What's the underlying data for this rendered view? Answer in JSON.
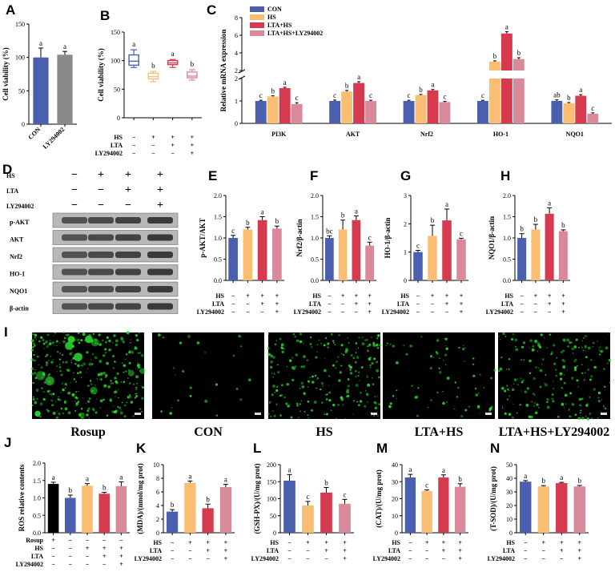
{
  "colors": {
    "CON": "#4a5fae",
    "HS": "#f9be72",
    "LTA_HS": "#d63a4e",
    "LTA_HS_LY": "#d8899a",
    "Rosup": "#000000",
    "LY294002": "#8a8a8a",
    "fluor": "#2bd42b"
  },
  "panels": {
    "A": "A",
    "B": "B",
    "C": "C",
    "D": "D",
    "E": "E",
    "F": "F",
    "G": "G",
    "H": "H",
    "I": "I",
    "J": "J",
    "K": "K",
    "L": "L",
    "M": "M",
    "N": "N"
  },
  "treatments": {
    "labels": [
      "HS",
      "LTA",
      "LY294002"
    ],
    "rows4": [
      [
        "−",
        "+",
        "+",
        "+"
      ],
      [
        "−",
        "−",
        "+",
        "+"
      ],
      [
        "−",
        "−",
        "−",
        "+"
      ]
    ],
    "rowsJ_label": "Rosup",
    "rowsJ": [
      [
        "+",
        "−",
        "−",
        "−",
        "−"
      ],
      [
        "−",
        "−",
        "+",
        "+",
        "+"
      ],
      [
        "−",
        "−",
        "−",
        "+",
        "+"
      ],
      [
        "−",
        "−",
        "−",
        "−",
        "+"
      ]
    ]
  },
  "western": {
    "header_labels": [
      "HS",
      "LTA",
      "LY294002"
    ],
    "header_rows": [
      [
        "−",
        "+",
        "+",
        "+"
      ],
      [
        "−",
        "−",
        "+",
        "+"
      ],
      [
        "−",
        "−",
        "−",
        "+"
      ]
    ],
    "bands": [
      "p-AKT",
      "AKT",
      "Nrf2",
      "HO-1",
      "NQO1",
      "β-actin"
    ]
  },
  "images": {
    "labels": [
      "Rosup",
      "CON",
      "HS",
      "LTA+HS",
      "LTA+HS+LY294002"
    ]
  },
  "chart_data": [
    {
      "id": "A",
      "type": "bar",
      "ylabel": "Cell viability (%)",
      "categories": [
        "CON",
        "LY294002"
      ],
      "values": [
        100,
        104
      ],
      "err": [
        14,
        5
      ],
      "letters": [
        "a",
        "a"
      ],
      "ylim": [
        0,
        150
      ],
      "yticks": [
        0,
        50,
        100,
        150
      ]
    },
    {
      "id": "B",
      "type": "box",
      "ylabel": "Cell viability (%)",
      "ylim": [
        0,
        150
      ],
      "yticks": [
        0,
        50,
        100,
        150
      ],
      "boxes": [
        {
          "min": 88,
          "q1": 92,
          "med": 99,
          "q3": 110,
          "max": 119,
          "letter": "a"
        },
        {
          "min": 63,
          "q1": 68,
          "med": 72,
          "q3": 78,
          "max": 81,
          "letter": "b"
        },
        {
          "min": 88,
          "q1": 93,
          "med": 96,
          "q3": 100,
          "max": 102,
          "letter": "a"
        },
        {
          "min": 66,
          "q1": 70,
          "med": 73,
          "q3": 80,
          "max": 84,
          "letter": "b"
        }
      ]
    },
    {
      "id": "C",
      "type": "bar",
      "ylabel": "Relative mRNA expression",
      "categories": [
        "PI3K",
        "AKT",
        "Nrf2",
        "HO-1",
        "NQO1"
      ],
      "legend": [
        "CON",
        "HS",
        "LTA+HS",
        "LTA+HS+LY294002"
      ],
      "series": [
        {
          "name": "CON",
          "values": [
            1.0,
            1.0,
            1.0,
            1.0,
            1.0
          ],
          "err": [
            0.03,
            0.04,
            0.03,
            0.03,
            0.05
          ],
          "letters": [
            "c",
            "c",
            "c",
            "c",
            "ab"
          ]
        },
        {
          "name": "HS",
          "values": [
            1.2,
            1.42,
            1.26,
            3.0,
            0.9
          ],
          "err": [
            0.03,
            0.05,
            0.03,
            0.1,
            0.03
          ],
          "letters": [
            "b",
            "b",
            "b",
            "b",
            "b"
          ]
        },
        {
          "name": "LTA+HS",
          "values": [
            1.57,
            1.8,
            1.47,
            6.2,
            1.23
          ],
          "err": [
            0.04,
            0.06,
            0.04,
            0.2,
            0.05
          ],
          "letters": [
            "a",
            "a",
            "a",
            "a",
            "a"
          ]
        },
        {
          "name": "LTA+HS+LY294002",
          "values": [
            0.86,
            1.0,
            0.95,
            3.3,
            0.43
          ],
          "err": [
            0.06,
            0.03,
            0.03,
            0.15,
            0.04
          ],
          "letters": [
            "c",
            "c",
            "c",
            "b",
            "c"
          ]
        }
      ],
      "yticks_low": [
        0,
        1,
        2
      ],
      "yticks_high": [
        2,
        4,
        6,
        8
      ]
    },
    {
      "id": "E",
      "type": "bar",
      "ylabel": "p-AKT/AKT",
      "values": [
        1.0,
        1.2,
        1.42,
        1.22
      ],
      "err": [
        0.06,
        0.05,
        0.08,
        0.06
      ],
      "letters": [
        "c",
        "b",
        "a",
        "b"
      ],
      "ylim": [
        0,
        2.0
      ],
      "yticks": [
        "0.0",
        "0.5",
        "1.0",
        "1.5",
        "2.0"
      ]
    },
    {
      "id": "F",
      "type": "bar",
      "ylabel": "Nrf2/β-actin",
      "values": [
        1.0,
        1.2,
        1.42,
        0.82
      ],
      "err": [
        0.05,
        0.22,
        0.1,
        0.08
      ],
      "letters": [
        "bc",
        "b",
        "a",
        "c"
      ],
      "ylim": [
        0,
        2.0
      ],
      "yticks": [
        "0.0",
        "0.5",
        "1.0",
        "1.5",
        "2.0"
      ]
    },
    {
      "id": "G",
      "type": "bar",
      "ylabel": "HO-1/β-actin",
      "values": [
        1.0,
        1.57,
        2.12,
        1.45
      ],
      "err": [
        0.06,
        0.38,
        0.4,
        0.04
      ],
      "letters": [
        "c",
        "b",
        "a",
        "c"
      ],
      "ylim": [
        0,
        3
      ],
      "yticks": [
        "0",
        "1",
        "2",
        "3"
      ]
    },
    {
      "id": "H",
      "type": "bar",
      "ylabel": "NQO1/β-actin",
      "values": [
        1.0,
        1.2,
        1.57,
        1.16
      ],
      "err": [
        0.1,
        0.12,
        0.14,
        0.03
      ],
      "letters": [
        "b",
        "b",
        "a",
        "b"
      ],
      "ylim": [
        0,
        2.0
      ],
      "yticks": [
        "0.0",
        "0.5",
        "1.0",
        "1.5",
        "2.0"
      ]
    },
    {
      "id": "J",
      "type": "bar",
      "ylabel": "ROS relative contents",
      "values": [
        1.4,
        1.0,
        1.35,
        1.12,
        1.34
      ],
      "err": [
        0.05,
        0.08,
        0.06,
        0.04,
        0.12
      ],
      "letters": [
        "a",
        "b",
        "a",
        "b",
        "a"
      ],
      "ylim": [
        0,
        2.0
      ],
      "yticks": [
        "0.0",
        "0.5",
        "1.0",
        "1.5",
        "2.0"
      ]
    },
    {
      "id": "K",
      "type": "bar",
      "ylabel": "(MDA)/(nmol/mg prot)",
      "values": [
        3.1,
        7.3,
        3.6,
        6.7
      ],
      "err": [
        0.3,
        0.3,
        0.6,
        0.4
      ],
      "letters": [
        "b",
        "a",
        "b",
        "a"
      ],
      "ylim": [
        0,
        10
      ],
      "yticks": [
        "0",
        "2",
        "4",
        "6",
        "8",
        "10"
      ]
    },
    {
      "id": "L",
      "type": "bar",
      "ylabel": "(GSH-PX)/(U/mg prot)",
      "values": [
        153,
        80,
        118,
        85
      ],
      "err": [
        18,
        12,
        15,
        13
      ],
      "letters": [
        "a",
        "c",
        "b",
        "c"
      ],
      "ylim": [
        0,
        200
      ],
      "yticks": [
        "0",
        "50",
        "100",
        "150",
        "200"
      ]
    },
    {
      "id": "M",
      "type": "bar",
      "ylabel": "(CAT)/(U/mg prot)",
      "values": [
        32.5,
        24.5,
        32.5,
        27
      ],
      "err": [
        1.8,
        0.7,
        1.5,
        1.8
      ],
      "letters": [
        "a",
        "c",
        "a",
        "b"
      ],
      "ylim": [
        0,
        40
      ],
      "yticks": [
        "0",
        "10",
        "20",
        "30",
        "40"
      ]
    },
    {
      "id": "N",
      "type": "bar",
      "ylabel": "(T-SOD)/(U/mg prot)",
      "values": [
        37.5,
        34,
        36.5,
        34
      ],
      "err": [
        0.8,
        0.6,
        0.5,
        0.7
      ],
      "letters": [
        "a",
        "b",
        "a",
        "b"
      ],
      "ylim": [
        0,
        50
      ],
      "yticks": [
        "0",
        "10",
        "20",
        "30",
        "40",
        "50"
      ]
    }
  ]
}
